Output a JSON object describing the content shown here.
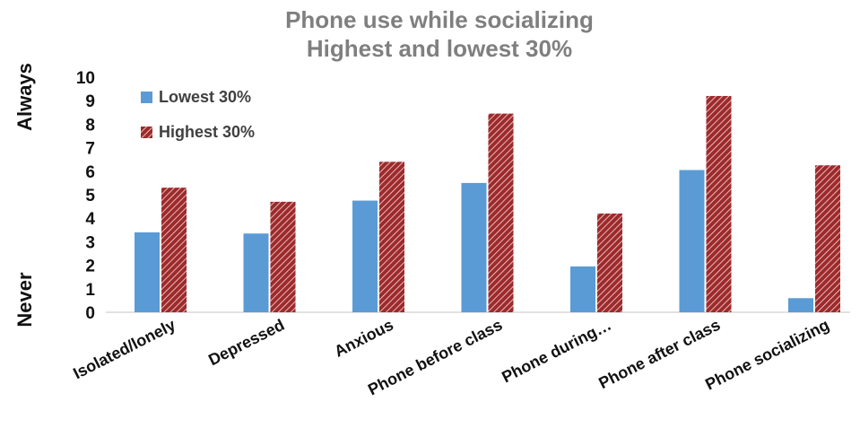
{
  "chart_data": {
    "type": "bar",
    "title": "Phone use while socializing",
    "subtitle": "Highest and lowest 30%",
    "ylabel_top": "Always",
    "ylabel_bottom": "Never",
    "ylim": [
      0,
      10
    ],
    "yticks": [
      "0",
      "1",
      "2",
      "3",
      "4",
      "5",
      "6",
      "7",
      "8",
      "9",
      "10"
    ],
    "categories": [
      "Isolated/lonely",
      "Depressed",
      "Anxious",
      "Phone before class",
      "Phone during…",
      "Phone after class",
      "Phone socializing"
    ],
    "series": [
      {
        "name": "Lowest 30%",
        "values": [
          3.4,
          3.35,
          4.75,
          5.5,
          1.95,
          6.05,
          0.6
        ],
        "color": "#5b9bd5"
      },
      {
        "name": "Highest 30%",
        "values": [
          5.3,
          4.7,
          6.4,
          8.45,
          4.2,
          9.2,
          6.25
        ],
        "color": "#9e2a2b"
      }
    ],
    "grid": false,
    "legend_position": "top-left"
  }
}
